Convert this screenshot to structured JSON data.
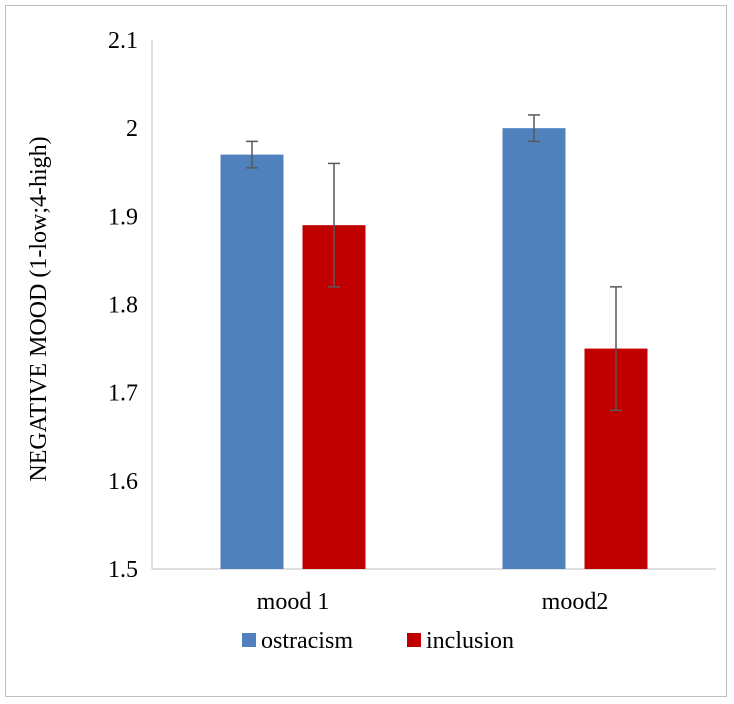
{
  "chart_data": {
    "type": "bar",
    "categories": [
      "mood 1",
      "mood2"
    ],
    "series": [
      {
        "name": "ostracism",
        "color": "#4f81bd",
        "values": [
          1.97,
          2.0
        ],
        "errors": [
          0.015,
          0.015
        ]
      },
      {
        "name": "inclusion",
        "color": "#c00000",
        "values": [
          1.89,
          1.75
        ],
        "errors": [
          0.07,
          0.07
        ]
      }
    ],
    "ylabel": "NEGATIVE MOOD (1-low;4-high)",
    "ylim": [
      1.5,
      2.1
    ],
    "yticks": [
      1.5,
      1.6,
      1.7,
      1.8,
      1.9,
      2.0,
      2.1
    ],
    "ytick_labels": [
      "1.5",
      "1.6",
      "1.7",
      "1.8",
      "1.9",
      "2",
      "2.1"
    ],
    "grid": false,
    "legend_position": "bottom"
  }
}
